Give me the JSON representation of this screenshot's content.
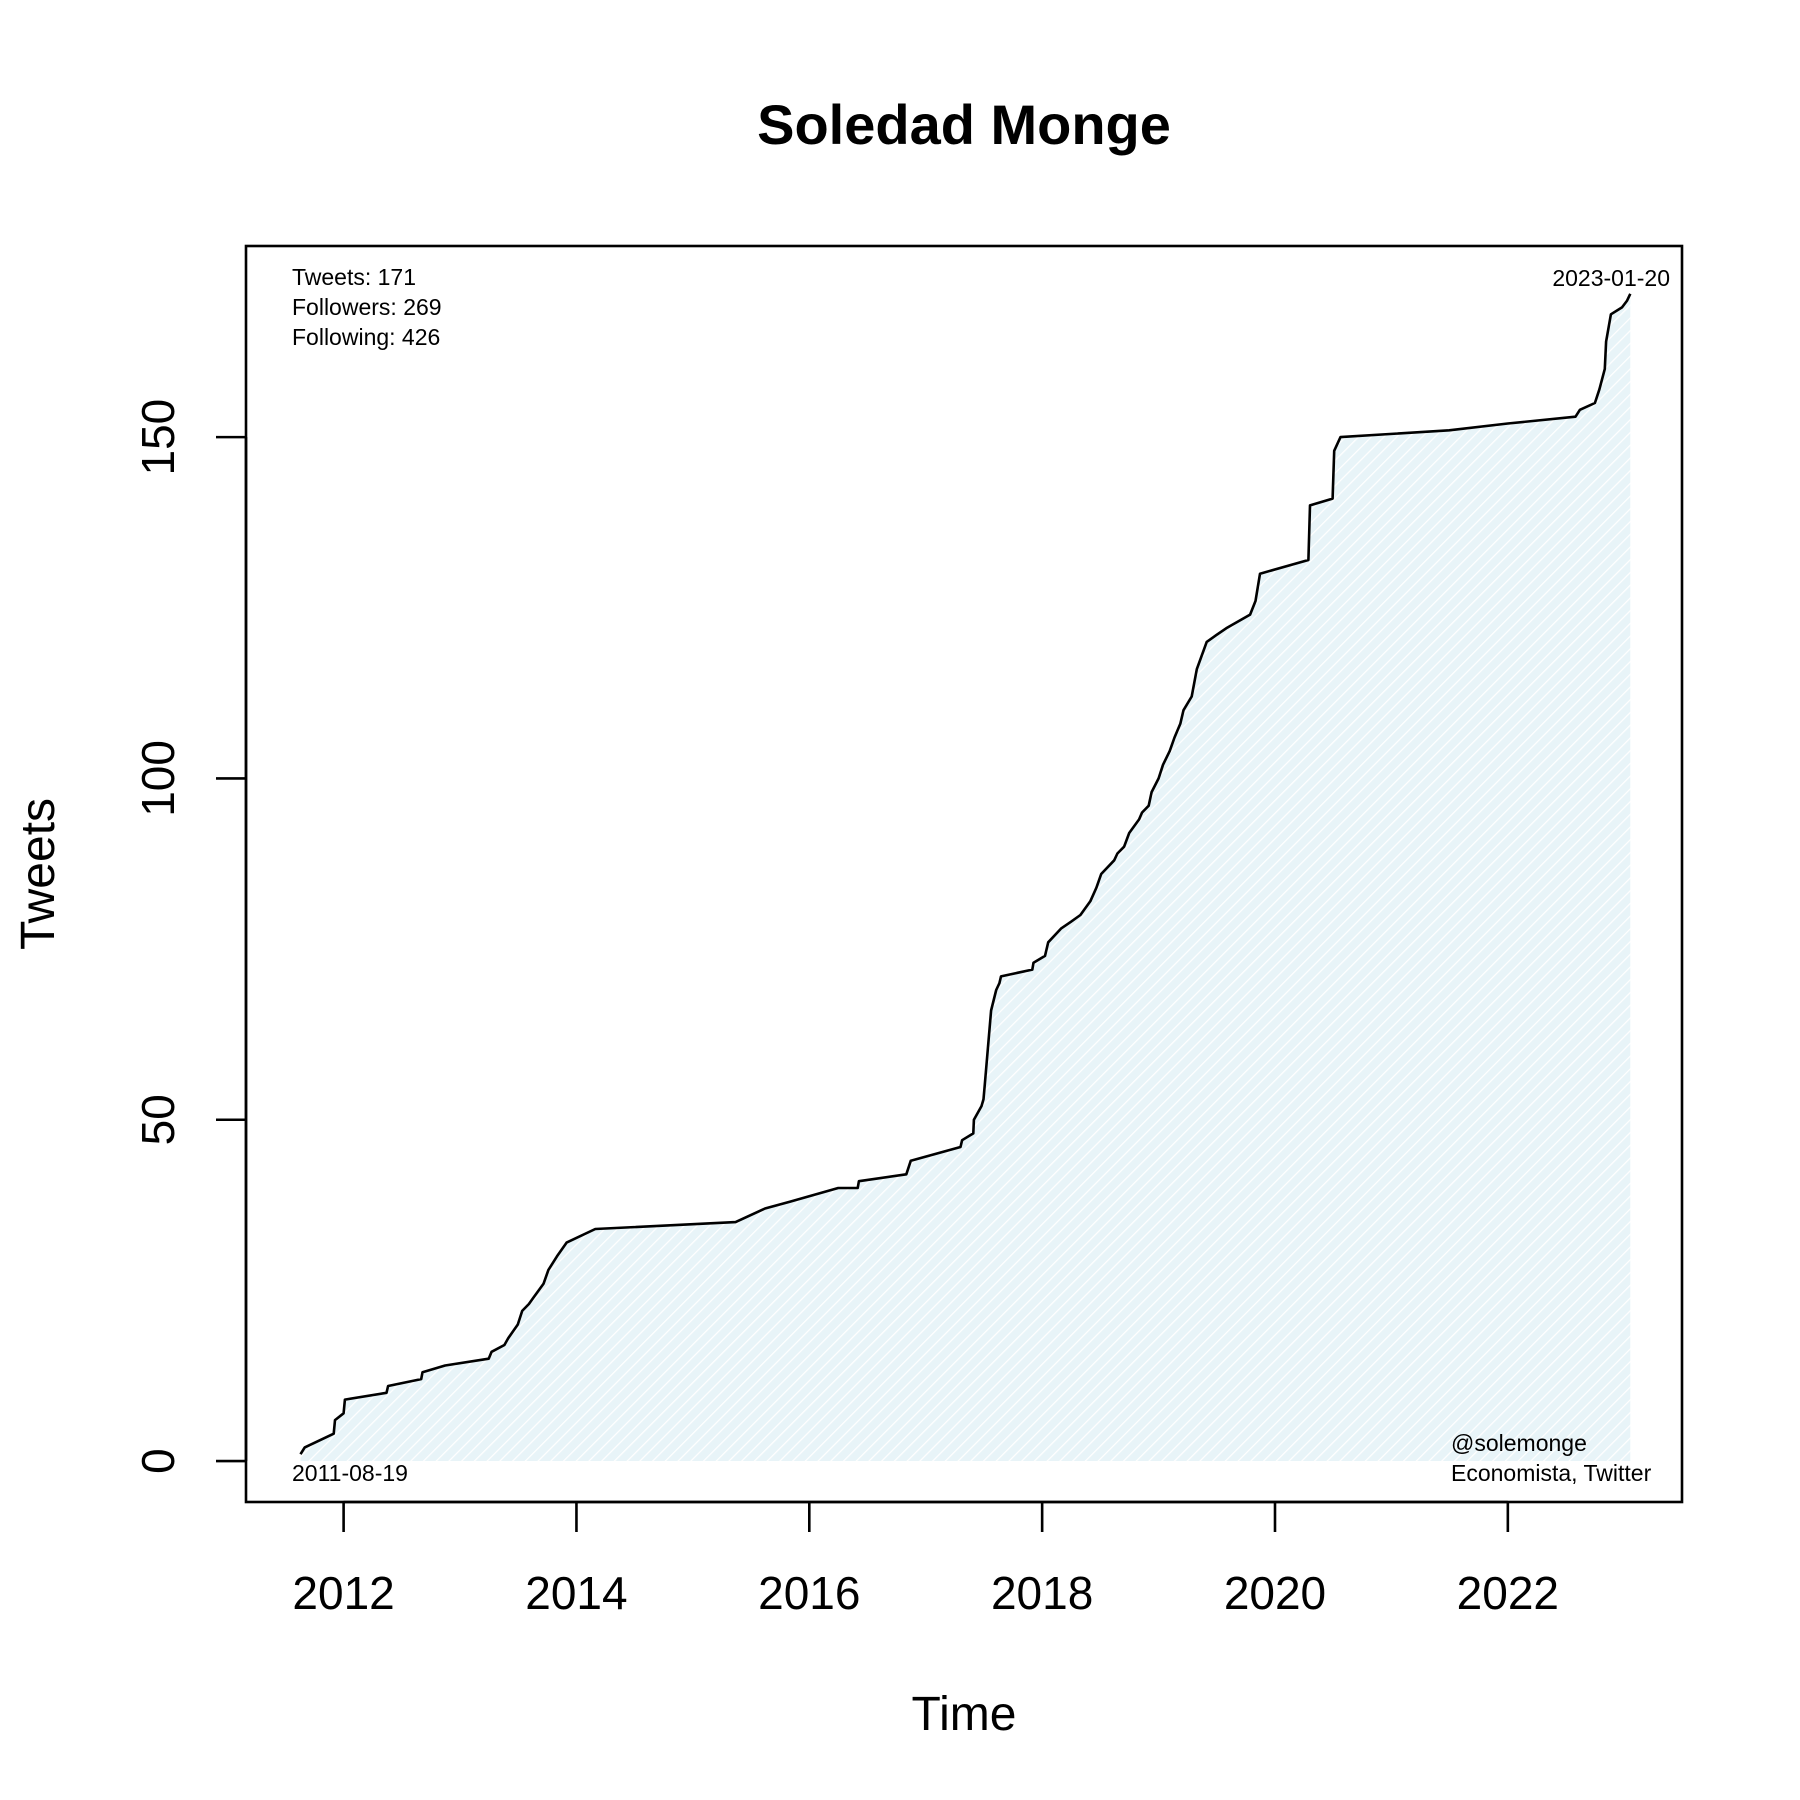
{
  "chart_data": {
    "type": "area",
    "title": "Soledad Monge",
    "xlabel": "Time",
    "ylabel": "Tweets",
    "xlim": [
      "2011-03-01",
      "2023-07-01"
    ],
    "ylim": [
      -6,
      178
    ],
    "x_ticks": [
      2012,
      2014,
      2016,
      2018,
      2020,
      2022
    ],
    "y_ticks": [
      0,
      50,
      100,
      150
    ],
    "grid": false,
    "fill_color": "#e8f4f8",
    "line_color": "#000000",
    "stats": [
      "Tweets: 171",
      "Followers: 269",
      "Following: 426"
    ],
    "start_label": "2011-08-19",
    "end_label": "2023-01-20",
    "handle": "@solemonge",
    "description": "Economista, Twitter",
    "series": [
      {
        "x": [
          "2011-08-19",
          "2011-09-01",
          "2011-12-01",
          "2011-12-05",
          "2012-01-01",
          "2012-01-05",
          "2012-05-15",
          "2012-05-20",
          "2012-09-01",
          "2012-09-05",
          "2012-11-15",
          "2013-04-01",
          "2013-04-10",
          "2013-05-20",
          "2013-06-01",
          "2013-07-01",
          "2013-07-15",
          "2013-08-05",
          "2013-08-20",
          "2013-09-20",
          "2013-10-05",
          "2013-11-01",
          "2013-12-01",
          "2014-03-01",
          "2015-05-15",
          "2015-08-15",
          "2015-11-01",
          "2016-04-01",
          "2016-06-01",
          "2016-06-05",
          "2016-11-01",
          "2016-11-15",
          "2017-04-20",
          "2017-04-25",
          "2017-05-30",
          "2017-06-01",
          "2017-06-25",
          "2017-07-01",
          "2017-07-05",
          "2017-07-25",
          "2017-08-10",
          "2017-08-20",
          "2017-08-25",
          "2017-12-01",
          "2017-12-05",
          "2018-01-10",
          "2018-01-20",
          "2018-03-01",
          "2018-04-01",
          "2018-05-01",
          "2018-06-01",
          "2018-06-20",
          "2018-07-05",
          "2018-08-15",
          "2018-08-25",
          "2018-09-15",
          "2018-10-01",
          "2018-11-01",
          "2018-11-10",
          "2018-12-01",
          "2018-12-10",
          "2019-01-01",
          "2019-01-15",
          "2019-02-05",
          "2019-02-20",
          "2019-03-10",
          "2019-03-20",
          "2019-04-15",
          "2019-05-01",
          "2019-06-01",
          "2019-07-01",
          "2019-08-01",
          "2019-10-15",
          "2019-11-01",
          "2019-11-15",
          "2020-04-15",
          "2020-04-20",
          "2020-06-30",
          "2020-07-05",
          "2020-07-25",
          "2021-07-01",
          "2022-01-01",
          "2022-08-01",
          "2022-08-15",
          "2022-10-01",
          "2022-10-15",
          "2022-11-01",
          "2022-11-05",
          "2022-11-20",
          "2022-12-25",
          "2023-01-10",
          "2023-01-20"
        ],
        "y": [
          1,
          2,
          4,
          6,
          7,
          9,
          10,
          11,
          12,
          13,
          14,
          15,
          16,
          17,
          18,
          20,
          22,
          23,
          24,
          26,
          28,
          30,
          32,
          34,
          35,
          37,
          38,
          40,
          40,
          41,
          42,
          44,
          46,
          47,
          48,
          50,
          52,
          53,
          55,
          66,
          69,
          70,
          71,
          72,
          73,
          74,
          76,
          78,
          79,
          80,
          82,
          84,
          86,
          88,
          89,
          90,
          92,
          94,
          95,
          96,
          98,
          100,
          102,
          104,
          106,
          108,
          110,
          112,
          116,
          120,
          121,
          122,
          124,
          126,
          130,
          132,
          140,
          141,
          148,
          150,
          151,
          152,
          153,
          154,
          155,
          157,
          160,
          164,
          168,
          169,
          170,
          171
        ]
      }
    ]
  }
}
